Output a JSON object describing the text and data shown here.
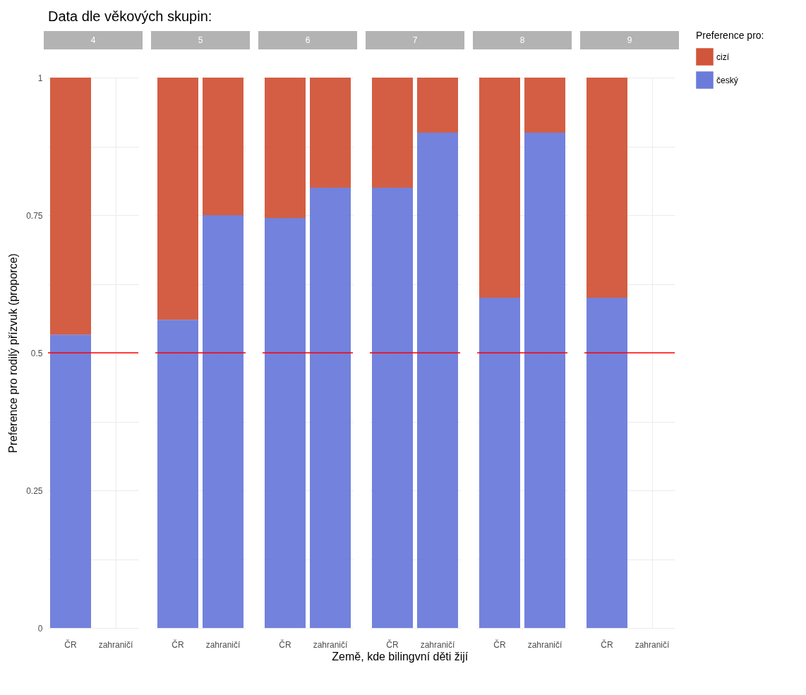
{
  "chart_data": [
    {
      "type": "bar",
      "stacked": true,
      "title": "4",
      "annotations": [
        "Data dle věkových skupin:"
      ],
      "ylabel": "Preference pro rodilý přízvuk (proporce)",
      "categories": [
        "ČR",
        "zahraničí"
      ],
      "series": [
        {
          "color": "#6b7bda",
          "values": [
            0.533,
            null
          ]
        },
        {
          "color": "#d1553a",
          "values": [
            0.467,
            null
          ]
        }
      ],
      "ylim": [
        0,
        1
      ],
      "yticks": [
        0,
        {
          "value": 0.125,
          "label": null
        },
        0.25,
        {
          "value": 0.375,
          "label": null
        },
        0.5,
        {
          "value": 0.625,
          "label": null
        },
        0.75,
        {
          "value": 0.875,
          "label": null
        },
        1
      ],
      "grid": true,
      "ref_lines": [
        {
          "axis": "y",
          "value": 0.5,
          "color": "#ff0000"
        }
      ]
    },
    {
      "type": "bar",
      "stacked": true,
      "title": "5",
      "categories": [
        "ČR",
        "zahraničí"
      ],
      "series": [
        {
          "color": "#6b7bda",
          "values": [
            0.56,
            0.75
          ]
        },
        {
          "color": "#d1553a",
          "values": [
            0.44,
            0.25
          ]
        }
      ],
      "ylim": [
        0,
        1
      ],
      "yticks": [
        0,
        {
          "value": 0.125,
          "label": null
        },
        0.25,
        {
          "value": 0.375,
          "label": null
        },
        0.5,
        {
          "value": 0.625,
          "label": null
        },
        0.75,
        {
          "value": 0.875,
          "label": null
        },
        1
      ],
      "tick_labels": "x",
      "grid": true,
      "ref_lines": [
        {
          "axis": "y",
          "value": 0.5,
          "color": "#ff0000"
        }
      ]
    },
    {
      "type": "bar",
      "stacked": true,
      "title": "6",
      "categories": [
        "ČR",
        "zahraničí"
      ],
      "series": [
        {
          "color": "#6b7bda",
          "values": [
            0.745,
            0.8
          ]
        },
        {
          "color": "#d1553a",
          "values": [
            0.255,
            0.2
          ]
        }
      ],
      "ylim": [
        0,
        1
      ],
      "yticks": [
        0,
        {
          "value": 0.125,
          "label": null
        },
        0.25,
        {
          "value": 0.375,
          "label": null
        },
        0.5,
        {
          "value": 0.625,
          "label": null
        },
        0.75,
        {
          "value": 0.875,
          "label": null
        },
        1
      ],
      "tick_labels": "x",
      "grid": true,
      "ref_lines": [
        {
          "axis": "y",
          "value": 0.5,
          "color": "#ff0000"
        }
      ]
    },
    {
      "type": "bar",
      "stacked": true,
      "title": "7",
      "xlabel": "Země, kde bilingvní děti žijí",
      "categories": [
        "ČR",
        "zahraničí"
      ],
      "series": [
        {
          "color": "#6b7bda",
          "values": [
            0.8,
            0.9
          ]
        },
        {
          "color": "#d1553a",
          "values": [
            0.2,
            0.1
          ]
        }
      ],
      "ylim": [
        0,
        1
      ],
      "yticks": [
        0,
        {
          "value": 0.125,
          "label": null
        },
        0.25,
        {
          "value": 0.375,
          "label": null
        },
        0.5,
        {
          "value": 0.625,
          "label": null
        },
        0.75,
        {
          "value": 0.875,
          "label": null
        },
        1
      ],
      "tick_labels": "x",
      "grid": true,
      "ref_lines": [
        {
          "axis": "y",
          "value": 0.5,
          "color": "#ff0000"
        }
      ]
    },
    {
      "type": "bar",
      "stacked": true,
      "title": "8",
      "categories": [
        "ČR",
        "zahraničí"
      ],
      "series": [
        {
          "color": "#6b7bda",
          "values": [
            0.6,
            0.9
          ]
        },
        {
          "color": "#d1553a",
          "values": [
            0.4,
            0.1
          ]
        }
      ],
      "ylim": [
        0,
        1
      ],
      "yticks": [
        0,
        {
          "value": 0.125,
          "label": null
        },
        0.25,
        {
          "value": 0.375,
          "label": null
        },
        0.5,
        {
          "value": 0.625,
          "label": null
        },
        0.75,
        {
          "value": 0.875,
          "label": null
        },
        1
      ],
      "tick_labels": "x",
      "grid": true,
      "ref_lines": [
        {
          "axis": "y",
          "value": 0.5,
          "color": "#ff0000"
        }
      ]
    },
    {
      "type": "bar",
      "stacked": true,
      "title": "9",
      "legend": "right",
      "legend_title": "Preference pro:",
      "categories": [
        "ČR",
        "zahraničí"
      ],
      "series": [
        {
          "name": "český",
          "color": "#6b7bda",
          "values": [
            0.6,
            null
          ]
        },
        {
          "name": "cizí",
          "color": "#d1553a",
          "values": [
            0.4,
            null
          ]
        }
      ],
      "ylim": [
        0,
        1
      ],
      "yticks": [
        0,
        {
          "value": 0.125,
          "label": null
        },
        0.25,
        {
          "value": 0.375,
          "label": null
        },
        0.5,
        {
          "value": 0.625,
          "label": null
        },
        0.75,
        {
          "value": 0.875,
          "label": null
        },
        1
      ],
      "tick_labels": "x",
      "grid": true,
      "ref_lines": [
        {
          "axis": "y",
          "value": 0.5,
          "color": "#ff0000"
        }
      ]
    }
  ]
}
